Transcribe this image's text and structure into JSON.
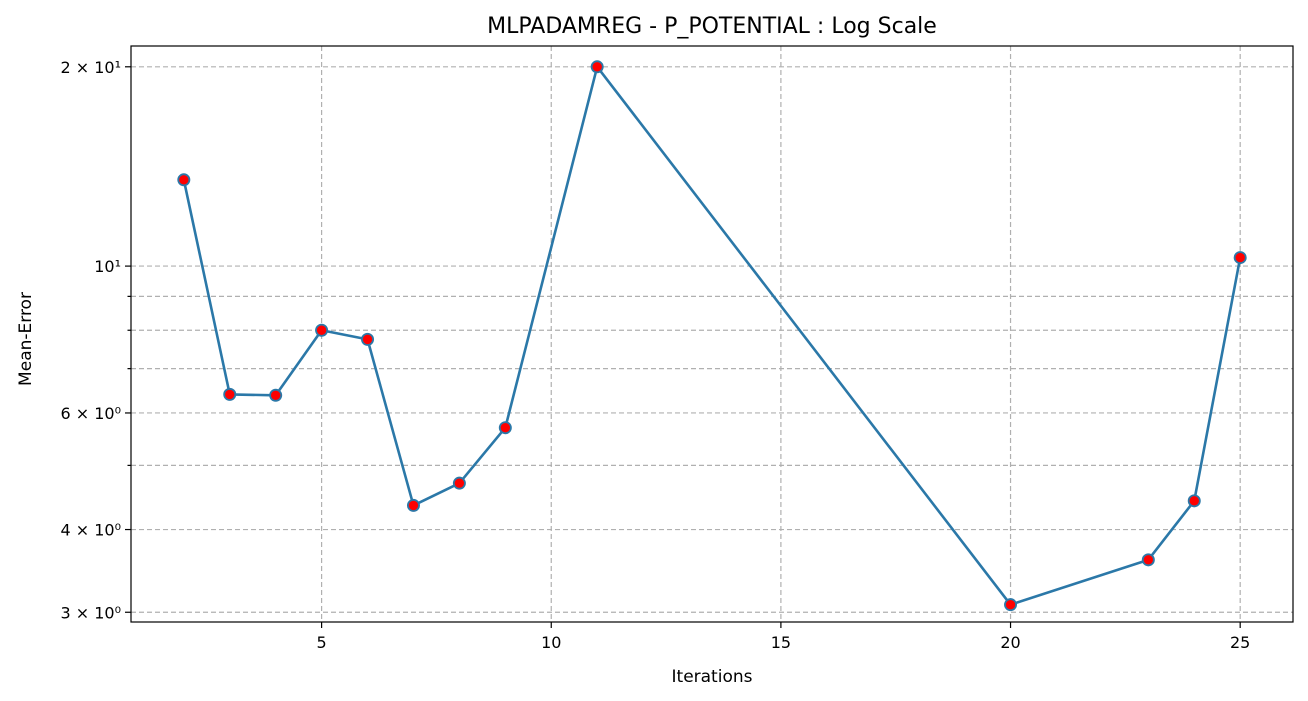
{
  "chart_data": {
    "type": "line",
    "title": "MLPADAMREG - P_POTENTIAL : Log Scale",
    "xlabel": "Iterations",
    "ylabel": "Mean-Error",
    "yscale": "log",
    "xlim": [
      0.85,
      26.15
    ],
    "ylim": [
      2.9,
      21.5
    ],
    "grid": true,
    "x_ticks": [
      5,
      10,
      15,
      20,
      25
    ],
    "y_major_ticks": [
      {
        "value": 3,
        "label": "3 × 10⁰"
      },
      {
        "value": 4,
        "label": "4 × 10⁰"
      },
      {
        "value": 6,
        "label": "6 × 10⁰"
      },
      {
        "value": 10,
        "label": "10¹"
      },
      {
        "value": 20,
        "label": "2 × 10¹"
      }
    ],
    "y_minor_ticks": [
      5,
      7,
      8,
      9
    ],
    "line_color": "#2b78a8",
    "marker_face_color": "#ff0000",
    "marker_edge_color": "#2b78a8",
    "x": [
      2,
      3,
      4,
      5,
      6,
      7,
      8,
      9,
      11,
      20,
      23,
      24,
      25
    ],
    "y": [
      13.5,
      6.4,
      6.38,
      8.0,
      7.75,
      4.35,
      4.7,
      5.7,
      20.0,
      3.08,
      3.6,
      4.42,
      10.3
    ]
  }
}
